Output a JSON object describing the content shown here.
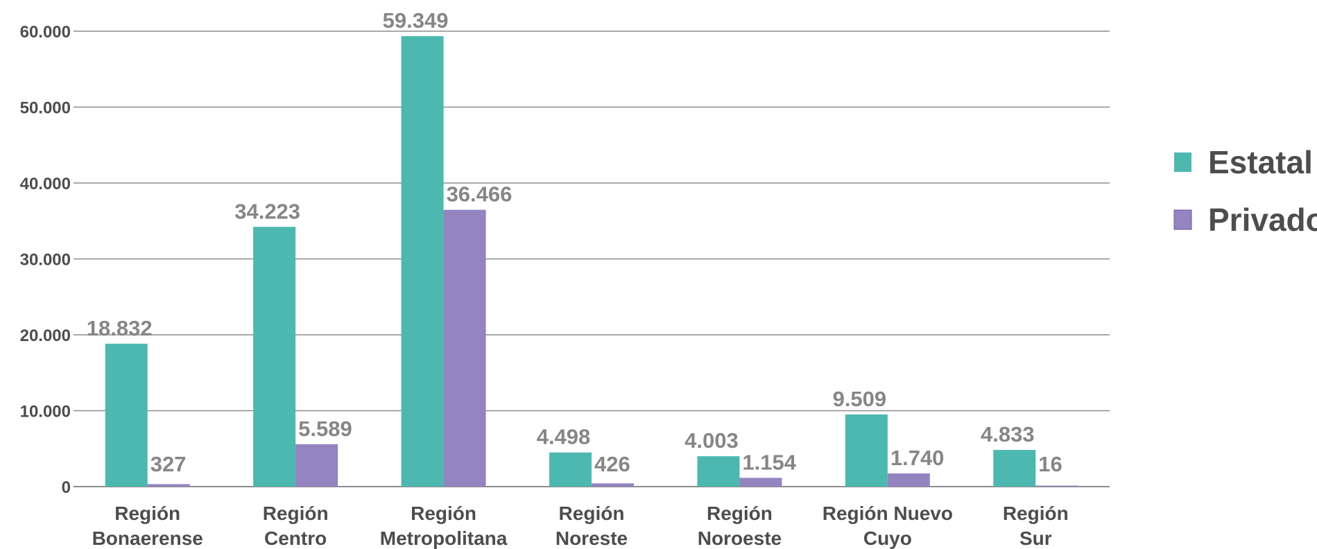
{
  "chart_data": {
    "type": "bar",
    "categories": [
      [
        "Región",
        "Bonaerense"
      ],
      [
        "Región",
        "Centro"
      ],
      [
        "Región",
        "Metropolitana"
      ],
      [
        "Región",
        "Noreste"
      ],
      [
        "Región",
        "Noroeste"
      ],
      [
        "Región Nuevo",
        "Cuyo"
      ],
      [
        "Región",
        "Sur"
      ]
    ],
    "series": [
      {
        "name": "Estatal",
        "color": "#4db8b0",
        "values": [
          18832,
          34223,
          59349,
          4498,
          4003,
          9509,
          4833
        ],
        "labels": [
          "18.832",
          "34.223",
          "59.349",
          "4.498",
          "4.003",
          "9.509",
          "4.833"
        ]
      },
      {
        "name": "Privado",
        "color": "#9484c0",
        "values": [
          327,
          5589,
          36466,
          426,
          1154,
          1740,
          16
        ],
        "labels": [
          "327",
          "5.589",
          "36.466",
          "426",
          "1.154",
          "1.740",
          "16"
        ]
      }
    ],
    "ylim": [
      0,
      60000
    ],
    "yticks": [
      0,
      10000,
      20000,
      30000,
      40000,
      50000,
      60000
    ],
    "ytick_labels": [
      "0",
      "10.000",
      "20.000",
      "30.000",
      "40.000",
      "50.000",
      "60.000"
    ],
    "grid": true,
    "legend_position": "right",
    "gridline_color": "#8c8c8c"
  }
}
